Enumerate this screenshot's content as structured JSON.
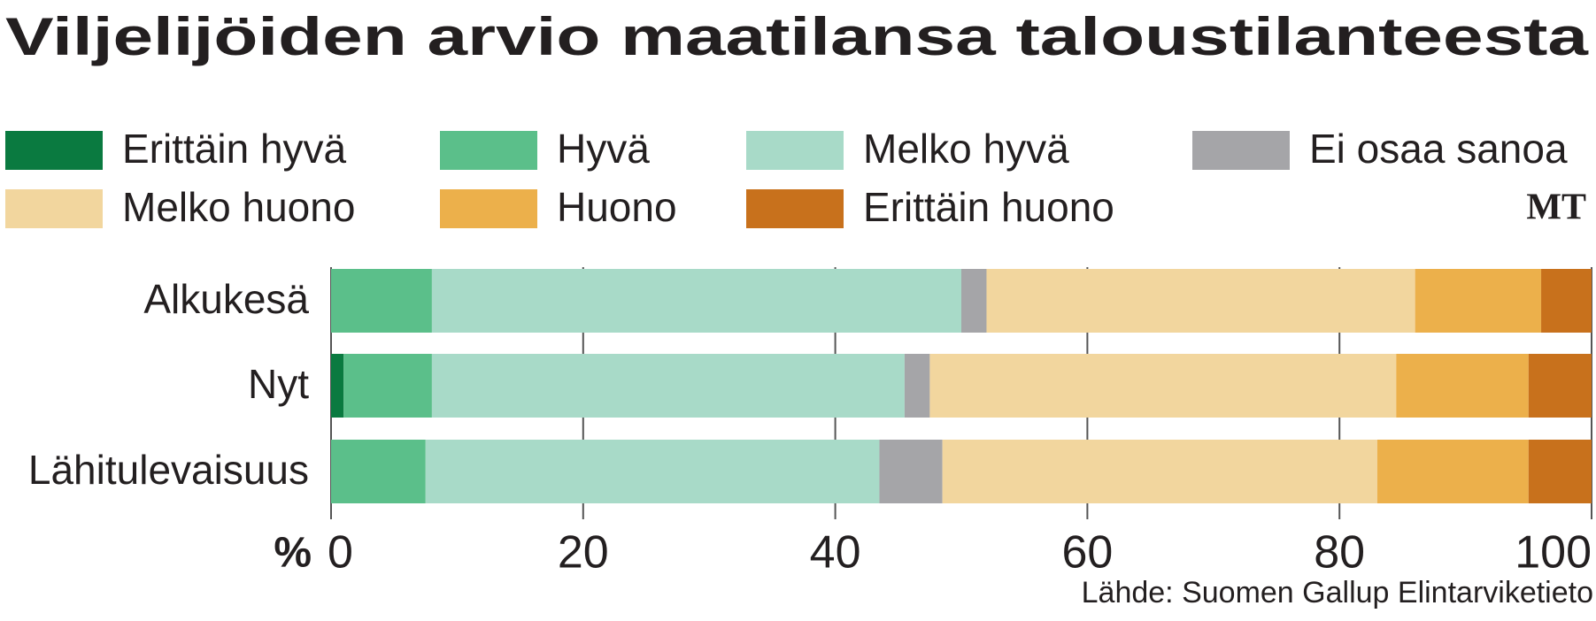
{
  "chart_data": {
    "type": "stacked-barh",
    "title": "Viljelijöiden arvio maatilansa taloustilanteesta",
    "categories": [
      "Alkukesä",
      "Nyt",
      "Lähitulevaisuus"
    ],
    "series": [
      {
        "name": "Erittäin hyvä",
        "color": "#0a7a40",
        "values": [
          0,
          1,
          0
        ]
      },
      {
        "name": "Hyvä",
        "color": "#5bbf8a",
        "values": [
          8,
          7,
          7.5
        ]
      },
      {
        "name": "Melko hyvä",
        "color": "#a8dac8",
        "values": [
          42,
          37.5,
          36
        ]
      },
      {
        "name": "Ei osaa sanoa",
        "color": "#a5a5a8",
        "values": [
          2,
          2,
          5
        ]
      },
      {
        "name": "Melko huono",
        "color": "#f2d69e",
        "values": [
          34,
          37,
          34.5
        ]
      },
      {
        "name": "Huono",
        "color": "#ecb04b",
        "values": [
          10,
          10.5,
          12
        ]
      },
      {
        "name": "Erittäin huono",
        "color": "#c8711c",
        "values": [
          4,
          5,
          5
        ]
      }
    ],
    "xlabel": "%",
    "xlim": [
      0,
      100
    ],
    "xticks": [
      0,
      20,
      40,
      60,
      80,
      100
    ],
    "grid": true,
    "logo": "MT",
    "source": "Lähde: Suomen Gallup Elintarviketieto"
  }
}
